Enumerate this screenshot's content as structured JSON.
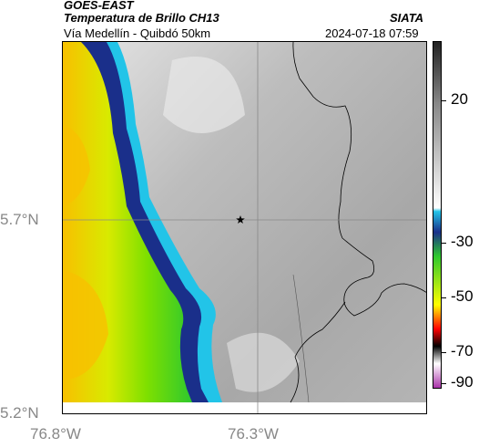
{
  "header": {
    "satellite": "GOES-EAST",
    "product": "Temperatura de Brillo CH13",
    "route": "Vía Medellín - Quibdó 50km",
    "org": "SIATA",
    "datetime": "2024-07-18 07:59"
  },
  "map": {
    "x_ticks": [
      "76.8°W",
      "76.3°W"
    ],
    "y_ticks": [
      "5.7°N",
      "5.2°N"
    ],
    "marker": "star",
    "colors": {
      "ocean_warm": "#f5b800",
      "ocean_mid": "#9be600",
      "ocean_green": "#2ec82e",
      "coast_dark": "#1a2f8a",
      "coast_cyan": "#22c4e8",
      "land_light": "#d9d9d9",
      "land_dark": "#9a9a9a"
    }
  },
  "colorbar": {
    "labels": [
      "20",
      "-30",
      "-50",
      "-70",
      "-90"
    ],
    "stops": [
      "#222222",
      "#888888",
      "#ffffff",
      "#22c4e8",
      "#1a2f8a",
      "#2ec82e",
      "#ffff00",
      "#ff0000",
      "#000000",
      "#ffffff",
      "#aa33aa"
    ]
  }
}
